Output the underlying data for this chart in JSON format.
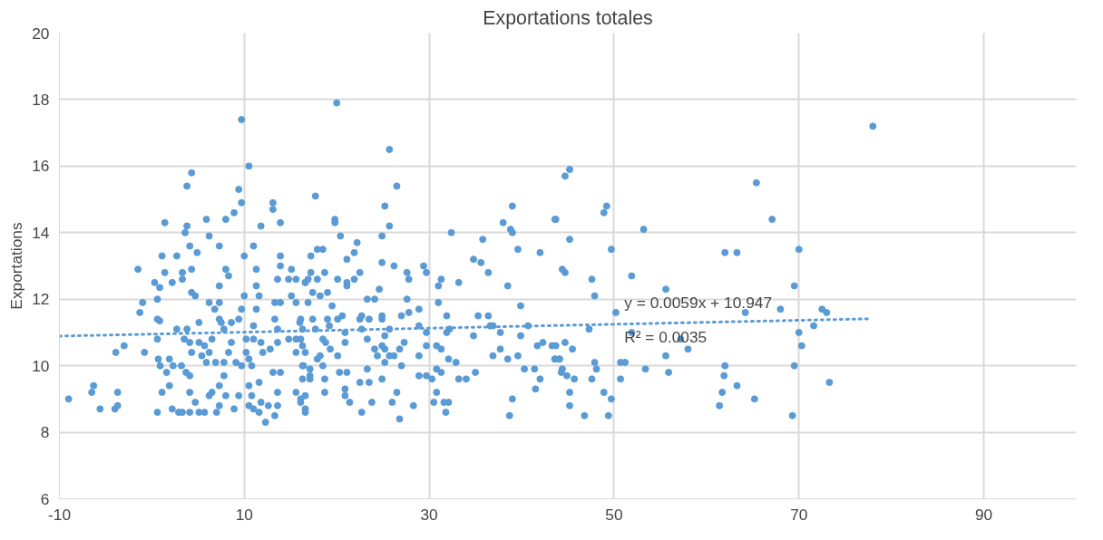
{
  "chart_data": {
    "type": "scatter",
    "title": "Exportations totales",
    "ylabel": "Exportations",
    "xlim": [
      -10,
      100
    ],
    "ylim": [
      6,
      20
    ],
    "xticks": [
      -10,
      10,
      30,
      50,
      70,
      90
    ],
    "yticks": [
      6,
      8,
      10,
      12,
      14,
      16,
      18,
      20
    ],
    "grid": true,
    "marker": "circle",
    "annotations": [
      "y = 0.0059x + 10.947",
      "R² = 0.0035"
    ],
    "series": [
      {
        "color": "#5b9bd5",
        "x": [
          -9.0,
          -6.3,
          -6.5,
          -5.6,
          -4.0,
          -3.7,
          -3.7,
          -3.0,
          -1.3,
          -1.0,
          -1.5,
          -0.8,
          -3.9,
          0.3,
          0.85,
          0.6,
          0.6,
          0.85,
          0.6,
          0.7,
          0.9,
          1.6,
          1.1,
          1.9,
          0.6,
          1.4,
          1.1,
          1.4,
          2.2,
          2.7,
          3.3,
          3.3,
          2.7,
          1.9,
          2.3,
          2.2,
          2.9,
          3.3,
          3.6,
          3.8,
          3.8,
          4.3,
          4.1,
          4.3,
          4.9,
          4.3,
          4.7,
          3.8,
          3.5,
          4.1,
          4.3,
          3.2,
          3.7,
          4.1,
          4.1,
          4.7,
          4.1,
          5.1,
          5.7,
          5.1,
          5.1,
          5.7,
          5.4,
          5.9,
          6.2,
          5.9,
          6.2,
          6.2,
          6.8,
          7.3,
          7.3,
          7.3,
          7.3,
          7.5,
          8.0,
          8.3,
          8.0,
          8.9,
          9.4,
          9.7,
          9.7,
          10.5,
          7.8,
          8.6,
          8.6,
          8.3,
          7.8,
          6.9,
          6.5,
          7.8,
          7.3,
          6.5,
          6.2,
          7.3,
          7.0,
          8.0,
          8.9,
          9.4,
          9.7,
          9.1,
          9.4,
          9.7,
          10.0,
          10.0,
          10.2,
          10.2,
          10.5,
          10.8,
          10.5,
          10.8,
          10.5,
          11.0,
          11.6,
          11.8,
          11.6,
          11.0,
          11.8,
          11.3,
          11.3,
          11.6,
          11.3,
          11.0,
          11.0,
          11.8,
          12.0,
          12.8,
          12.3,
          12.6,
          13.3,
          13.6,
          13.1,
          13.9,
          13.6,
          13.1,
          13.1,
          13.9,
          13.9,
          13.9,
          13.6,
          13.3,
          13.9,
          13.3,
          13.6,
          13.6,
          14.8,
          15.1,
          15.6,
          15.1,
          15.6,
          14.8,
          15.6,
          16.0,
          15.6,
          15.6,
          16.4,
          16.1,
          16.6,
          16.6,
          20.0,
          25.7,
          26.5,
          17.7,
          25.2,
          25.7,
          19.8,
          19.8,
          20.4,
          17.9,
          18.5,
          17.2,
          22.2,
          21.9,
          21.1,
          24.9,
          24.9,
          26.2,
          29.4,
          29.7,
          32.4,
          27.6,
          27.8,
          31.3,
          31.0,
          33.2,
          34.8,
          35.6,
          35.8,
          36.4,
          38.0,
          38.8,
          39.0,
          39.0,
          39.6,
          38.5,
          42.0,
          43.6,
          44.4,
          22.5,
          21.9,
          20.1,
          21.1,
          21.1,
          17.2,
          18.7,
          17.9,
          16.6,
          16.9,
          17.4,
          18.2,
          19.0,
          16.9,
          23.3,
          24.1,
          24.6,
          27.6,
          19.5,
          20.1,
          20.6,
          22.7,
          22.5,
          23.5,
          24.9,
          24.9,
          27.0,
          27.8,
          28.9,
          31.0,
          31.9,
          35.3,
          36.4,
          36.6,
          39.9,
          16.1,
          17.4,
          19.0,
          16.3,
          17.7,
          19.2,
          20.9,
          22.7,
          23.3,
          25.7,
          25.2,
          28.9,
          29.7,
          31.9,
          32.2,
          34.8,
          36.9,
          37.7,
          40.7,
          39.9,
          16.1,
          16.3,
          18.5,
          18.8,
          19.3,
          20.9,
          27.3,
          24.1,
          24.9,
          25.2,
          26.8,
          29.7,
          30.8,
          31.3,
          16.6,
          18.2,
          20.1,
          17.9,
          24.4,
          25.7,
          26.2,
          28.9,
          32.1,
          32.9,
          36.9,
          37.7,
          38.5,
          39.6,
          41.7,
          42.3,
          43.3,
          43.6,
          44.1,
          16.3,
          17.1,
          18.5,
          20.3,
          21.1,
          23.3,
          25.2,
          27.0,
          30.8,
          31.3,
          35.0,
          40.3,
          41.4,
          44.3,
          16.3,
          17.1,
          17.1,
          18.7,
          22.5,
          23.5,
          24.9,
          28.9,
          29.7,
          30.3,
          33.2,
          34.0,
          42.0,
          41.5,
          16.6,
          16.1,
          18.7,
          20.9,
          20.9,
          21.4,
          23.8,
          26.5,
          30.8,
          31.6,
          32.1,
          30.5,
          26.0,
          16.6,
          22.7,
          26.8,
          28.3,
          31.8,
          38.7,
          39.0,
          78.0,
          44.7,
          45.2,
          65.4,
          67.1,
          48.9,
          49.2,
          43.7,
          53.2,
          45.2,
          49.7,
          62.0,
          63.3,
          70.0,
          44.7,
          51.9,
          47.6,
          47.9,
          55.6,
          69.5,
          50.2,
          47.3,
          51.9,
          64.2,
          68.0,
          72.5,
          73.0,
          71.6,
          70.0,
          70.3,
          57.2,
          58.0,
          55.6,
          44.7,
          45.5,
          43.7,
          43.6,
          44.1,
          44.4,
          44.9,
          45.7,
          45.2,
          45.2,
          46.8,
          47.9,
          48.1,
          47.6,
          48.9,
          49.7,
          49.4,
          50.7,
          51.2,
          50.7,
          53.4,
          55.9,
          61.9,
          62.0,
          61.7,
          61.4,
          63.3,
          65.2,
          69.5,
          69.3,
          73.3
        ],
        "values": [
          9.0,
          9.4,
          9.2,
          8.7,
          8.7,
          8.8,
          9.2,
          10.6,
          11.6,
          11.9,
          12.9,
          10.4,
          10.4,
          12.5,
          12.35,
          12.0,
          11.4,
          11.35,
          10.8,
          10.2,
          10.0,
          9.8,
          9.2,
          9.4,
          8.6,
          14.3,
          13.3,
          12.8,
          12.5,
          13.3,
          12.8,
          12.6,
          11.1,
          10.2,
          10.0,
          8.7,
          8.6,
          8.6,
          14.0,
          14.2,
          15.4,
          15.8,
          13.6,
          12.9,
          13.4,
          12.2,
          12.1,
          11.1,
          10.8,
          10.7,
          10.4,
          10.0,
          9.8,
          9.7,
          9.2,
          8.9,
          8.6,
          8.6,
          8.6,
          11.3,
          10.7,
          10.6,
          10.3,
          10.1,
          10.4,
          14.4,
          13.9,
          11.9,
          11.7,
          13.6,
          12.4,
          11.9,
          11.4,
          11.3,
          12.9,
          12.7,
          14.4,
          14.6,
          15.3,
          14.9,
          17.4,
          16.0,
          11.1,
          11.3,
          10.7,
          10.4,
          10.1,
          10.1,
          10.8,
          9.7,
          9.4,
          9.2,
          9.1,
          8.8,
          8.6,
          9.1,
          8.7,
          9.1,
          10.0,
          10.1,
          11.4,
          11.7,
          12.1,
          13.3,
          10.8,
          10.4,
          10.2,
          10.0,
          9.4,
          9.1,
          8.8,
          8.7,
          8.6,
          8.9,
          9.5,
          13.6,
          14.2,
          12.9,
          12.4,
          12.1,
          11.7,
          11.2,
          10.8,
          10.7,
          10.4,
          10.5,
          8.3,
          8.8,
          8.5,
          8.8,
          9.8,
          9.8,
          9.2,
          14.9,
          14.7,
          14.3,
          13.3,
          13.0,
          12.6,
          11.9,
          11.9,
          11.4,
          11.1,
          10.7,
          12.6,
          12.9,
          12.6,
          12.1,
          11.9,
          10.8,
          10.4,
          11.3,
          10.8,
          9.2,
          10.0,
          8.9,
          8.6,
          12.5,
          17.9,
          16.5,
          15.4,
          15.1,
          14.8,
          14.2,
          14.4,
          14.3,
          13.9,
          13.5,
          13.5,
          13.3,
          13.7,
          13.4,
          13.2,
          13.9,
          13.1,
          13.0,
          13.0,
          12.8,
          14.0,
          12.8,
          12.6,
          12.6,
          12.4,
          12.5,
          13.2,
          13.1,
          13.8,
          12.8,
          14.3,
          14.1,
          14.0,
          14.8,
          13.5,
          12.4,
          13.4,
          14.4,
          12.9,
          12.8,
          12.6,
          12.6,
          12.5,
          12.4,
          12.8,
          12.8,
          12.6,
          12.5,
          12.6,
          12.2,
          12.1,
          12.2,
          11.9,
          12.0,
          12.0,
          12.3,
          12.0,
          11.8,
          11.4,
          11.5,
          11.5,
          11.4,
          11.4,
          11.5,
          11.4,
          11.5,
          11.6,
          11.7,
          11.9,
          11.5,
          11.5,
          11.5,
          11.2,
          11.8,
          11.4,
          11.4,
          11.4,
          11.1,
          11.1,
          11.2,
          11.0,
          11.1,
          10.8,
          11.1,
          10.9,
          11.2,
          11.0,
          11.0,
          11.1,
          10.9,
          11.2,
          11.0,
          11.2,
          10.9,
          10.8,
          10.6,
          10.8,
          10.7,
          10.5,
          10.7,
          10.7,
          10.5,
          10.6,
          10.5,
          10.5,
          10.6,
          10.6,
          10.5,
          10.4,
          10.3,
          10.3,
          10.2,
          10.3,
          10.3,
          10.3,
          10.3,
          10.2,
          10.1,
          10.3,
          10.5,
          10.2,
          10.3,
          10.6,
          10.7,
          10.6,
          10.2,
          10.2,
          10.0,
          9.9,
          10.0,
          9.8,
          9.8,
          9.9,
          10.1,
          10.0,
          9.9,
          9.8,
          9.8,
          9.9,
          9.9,
          9.8,
          9.6,
          9.7,
          9.6,
          9.6,
          9.5,
          9.5,
          9.6,
          9.7,
          9.7,
          9.6,
          9.6,
          9.6,
          9.6,
          9.3,
          9.1,
          9.0,
          9.2,
          9.3,
          9.1,
          8.9,
          8.9,
          9.2,
          9.2,
          8.9,
          8.9,
          8.9,
          8.9,
          8.7,
          8.6,
          8.4,
          8.8,
          8.6,
          8.5,
          9.0,
          17.2,
          15.7,
          15.9,
          15.5,
          14.4,
          14.6,
          14.8,
          14.4,
          14.1,
          13.8,
          13.5,
          13.4,
          13.4,
          13.5,
          12.8,
          12.7,
          12.6,
          12.1,
          12.3,
          12.4,
          11.6,
          11.1,
          11.0,
          11.6,
          11.7,
          11.7,
          11.6,
          11.2,
          11.0,
          10.6,
          10.8,
          10.5,
          10.3,
          10.7,
          10.5,
          10.6,
          10.2,
          10.2,
          9.9,
          9.7,
          9.6,
          9.2,
          8.8,
          8.5,
          10.1,
          9.9,
          9.6,
          9.2,
          9.0,
          8.5,
          10.1,
          10.1,
          9.6,
          9.9,
          9.8,
          9.7,
          10.0,
          9.2,
          8.8,
          9.4,
          9.0,
          10.0,
          8.5,
          9.5
        ]
      },
      {
        "type": "line",
        "color": "#5b9bd5",
        "line_style": "dotted",
        "marker": "none",
        "x": [
          -10,
          77.6
        ],
        "values": [
          10.89,
          11.41
        ]
      }
    ]
  }
}
